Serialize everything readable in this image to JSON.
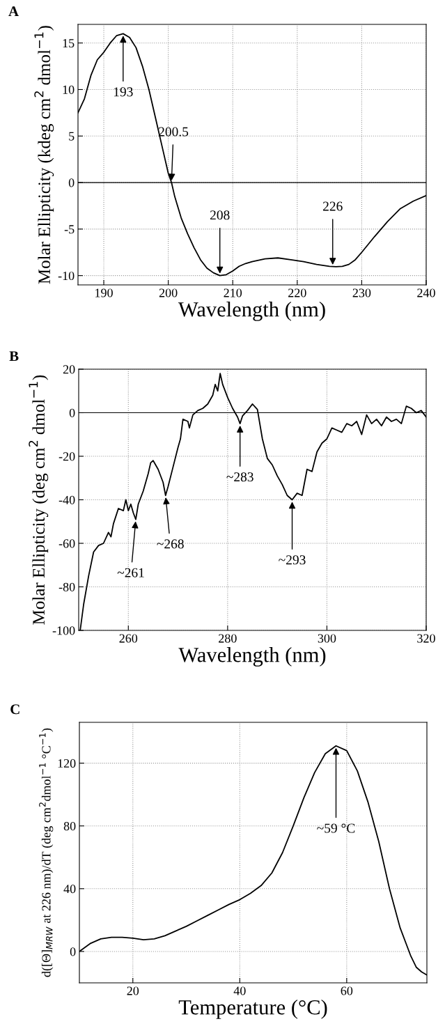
{
  "chart_data": [
    {
      "type": "line",
      "title": "A",
      "xlabel": "Wavelength (nm)",
      "ylabel": "Molar Ellipticity (kdeg cm$^{2}$ dmol$^{−1}$)",
      "x": [
        186,
        187,
        188,
        189,
        190,
        191,
        192,
        193,
        194,
        195,
        196,
        197,
        198,
        199,
        200,
        200.5,
        201,
        202,
        203,
        204,
        205,
        206,
        207,
        208,
        209,
        210,
        211,
        212,
        213,
        215,
        217,
        219,
        221,
        223,
        225,
        226,
        227,
        228,
        229,
        230,
        232,
        234,
        236,
        238,
        240
      ],
      "series": [
        {
          "color": "#000000",
          "values": [
            7.5,
            9,
            11.5,
            13.2,
            14,
            15,
            15.8,
            16,
            15.6,
            14.5,
            12.5,
            10,
            7,
            4,
            1,
            0,
            -1.5,
            -3.8,
            -5.5,
            -7,
            -8.3,
            -9.2,
            -9.7,
            -10,
            -9.9,
            -9.5,
            -9,
            -8.7,
            -8.5,
            -8.2,
            -8.1,
            -8.3,
            -8.5,
            -8.8,
            -9,
            -9.05,
            -9,
            -8.8,
            -8.3,
            -7.5,
            -5.8,
            -4.2,
            -2.8,
            -2.0,
            -1.4
          ]
        }
      ],
      "xlim": [
        186,
        240
      ],
      "ylim": [
        -11,
        17
      ],
      "xticks": [
        190,
        200,
        210,
        220,
        230,
        240
      ],
      "yticks": [
        -10,
        -5,
        0,
        5,
        10,
        15
      ],
      "grid": true,
      "ref_lines": [
        {
          "axis": "y",
          "value": 0,
          "color": "#000000"
        }
      ],
      "annotations": [
        {
          "text": "193",
          "x": 193,
          "y": 16
        },
        {
          "text": "200.5",
          "x": 200.5,
          "y": 0
        },
        {
          "text": "208",
          "x": 208,
          "y": -10
        },
        {
          "text": "226",
          "x": 225.5,
          "y": -9.05
        }
      ]
    },
    {
      "type": "line",
      "title": "B",
      "xlabel": "Wavelength (nm)",
      "ylabel": "Molar Ellipticity (deg cm$^{2}$ dmol$^{−1}$)",
      "x": [
        250.3,
        251,
        252,
        253,
        254,
        255,
        256,
        256.5,
        257,
        258,
        259,
        259.5,
        260,
        260.5,
        261,
        261.5,
        262,
        263,
        264,
        264.5,
        265,
        266,
        267,
        267.5,
        268,
        269,
        270,
        270.5,
        271,
        272,
        272.3,
        273,
        274,
        275,
        276,
        277,
        277.5,
        278,
        278.5,
        279,
        280,
        281,
        282,
        282.5,
        283,
        284,
        285,
        286,
        287,
        288,
        289,
        290,
        291,
        292,
        293,
        294,
        295,
        296,
        297,
        298,
        299,
        300,
        301,
        302,
        303,
        304,
        305,
        306,
        307,
        308,
        309,
        310,
        311,
        312,
        313,
        314,
        315,
        316,
        317,
        318,
        319,
        320
      ],
      "series": [
        {
          "color": "#000000",
          "values": [
            -100,
            -88,
            -75,
            -64,
            -61,
            -60,
            -55,
            -57,
            -51,
            -44,
            -45,
            -40,
            -45,
            -42,
            -46,
            -49,
            -42,
            -36,
            -28,
            -23,
            -22,
            -26,
            -32,
            -38,
            -34,
            -25,
            -16,
            -12,
            -3,
            -4,
            -7,
            -1,
            1,
            2,
            4,
            8,
            13,
            10,
            18,
            13,
            7,
            2,
            -2,
            -5,
            -1.5,
            1,
            4,
            1.5,
            -12,
            -21,
            -24,
            -29,
            -33,
            -38,
            -40,
            -37,
            -38,
            -26,
            -27,
            -18,
            -14,
            -12,
            -7,
            -8,
            -9,
            -5,
            -6,
            -4,
            -10,
            -1,
            -5,
            -3,
            -6,
            -2,
            -4,
            -3,
            -5,
            3,
            2,
            0,
            1,
            -2
          ]
        }
      ],
      "xlim": [
        250,
        320
      ],
      "ylim": [
        -100,
        20
      ],
      "xticks": [
        260,
        280,
        300,
        320
      ],
      "yticks": [
        -100,
        -80,
        -60,
        -40,
        -20,
        0,
        20
      ],
      "grid": true,
      "ref_lines": [
        {
          "axis": "y",
          "value": 0,
          "color": "#000000"
        }
      ],
      "annotations": [
        {
          "text": "~261",
          "x": 261.5,
          "y": -49
        },
        {
          "text": "~268",
          "x": 267.5,
          "y": -38
        },
        {
          "text": "~283",
          "x": 282.5,
          "y": -5
        },
        {
          "text": "~293",
          "x": 293,
          "y": -40
        }
      ]
    },
    {
      "type": "line",
      "title": "C",
      "xlabel": "Temperature (°C)",
      "ylabel": "d([Θ]$_{MRW}$ at 226 nm)/dT (deg cm$^{2}$dmol$^{−1}$ °C$^{−1}$)",
      "x": [
        10,
        12,
        14,
        16,
        18,
        20,
        22,
        24,
        26,
        28,
        30,
        32,
        34,
        36,
        38,
        40,
        42,
        44,
        46,
        48,
        50,
        52,
        54,
        56,
        58,
        60,
        62,
        64,
        66,
        68,
        70,
        72,
        73,
        74,
        75
      ],
      "series": [
        {
          "color": "#000000",
          "values": [
            0,
            5,
            8,
            9,
            9,
            8.5,
            7.5,
            8,
            10,
            13,
            16,
            19.5,
            23,
            26.5,
            30,
            33,
            37,
            42,
            50,
            63,
            80,
            98,
            114,
            126,
            131,
            128,
            115,
            95,
            70,
            40,
            15,
            -3,
            -10,
            -13,
            -15
          ]
        }
      ],
      "xlim": [
        10,
        75
      ],
      "ylim": [
        -20,
        146
      ],
      "xticks": [
        20,
        40,
        60
      ],
      "yticks": [
        0,
        40,
        80,
        120
      ],
      "grid": true,
      "annotations": [
        {
          "text": "~59 °C",
          "x": 58,
          "y": 131
        }
      ]
    }
  ]
}
